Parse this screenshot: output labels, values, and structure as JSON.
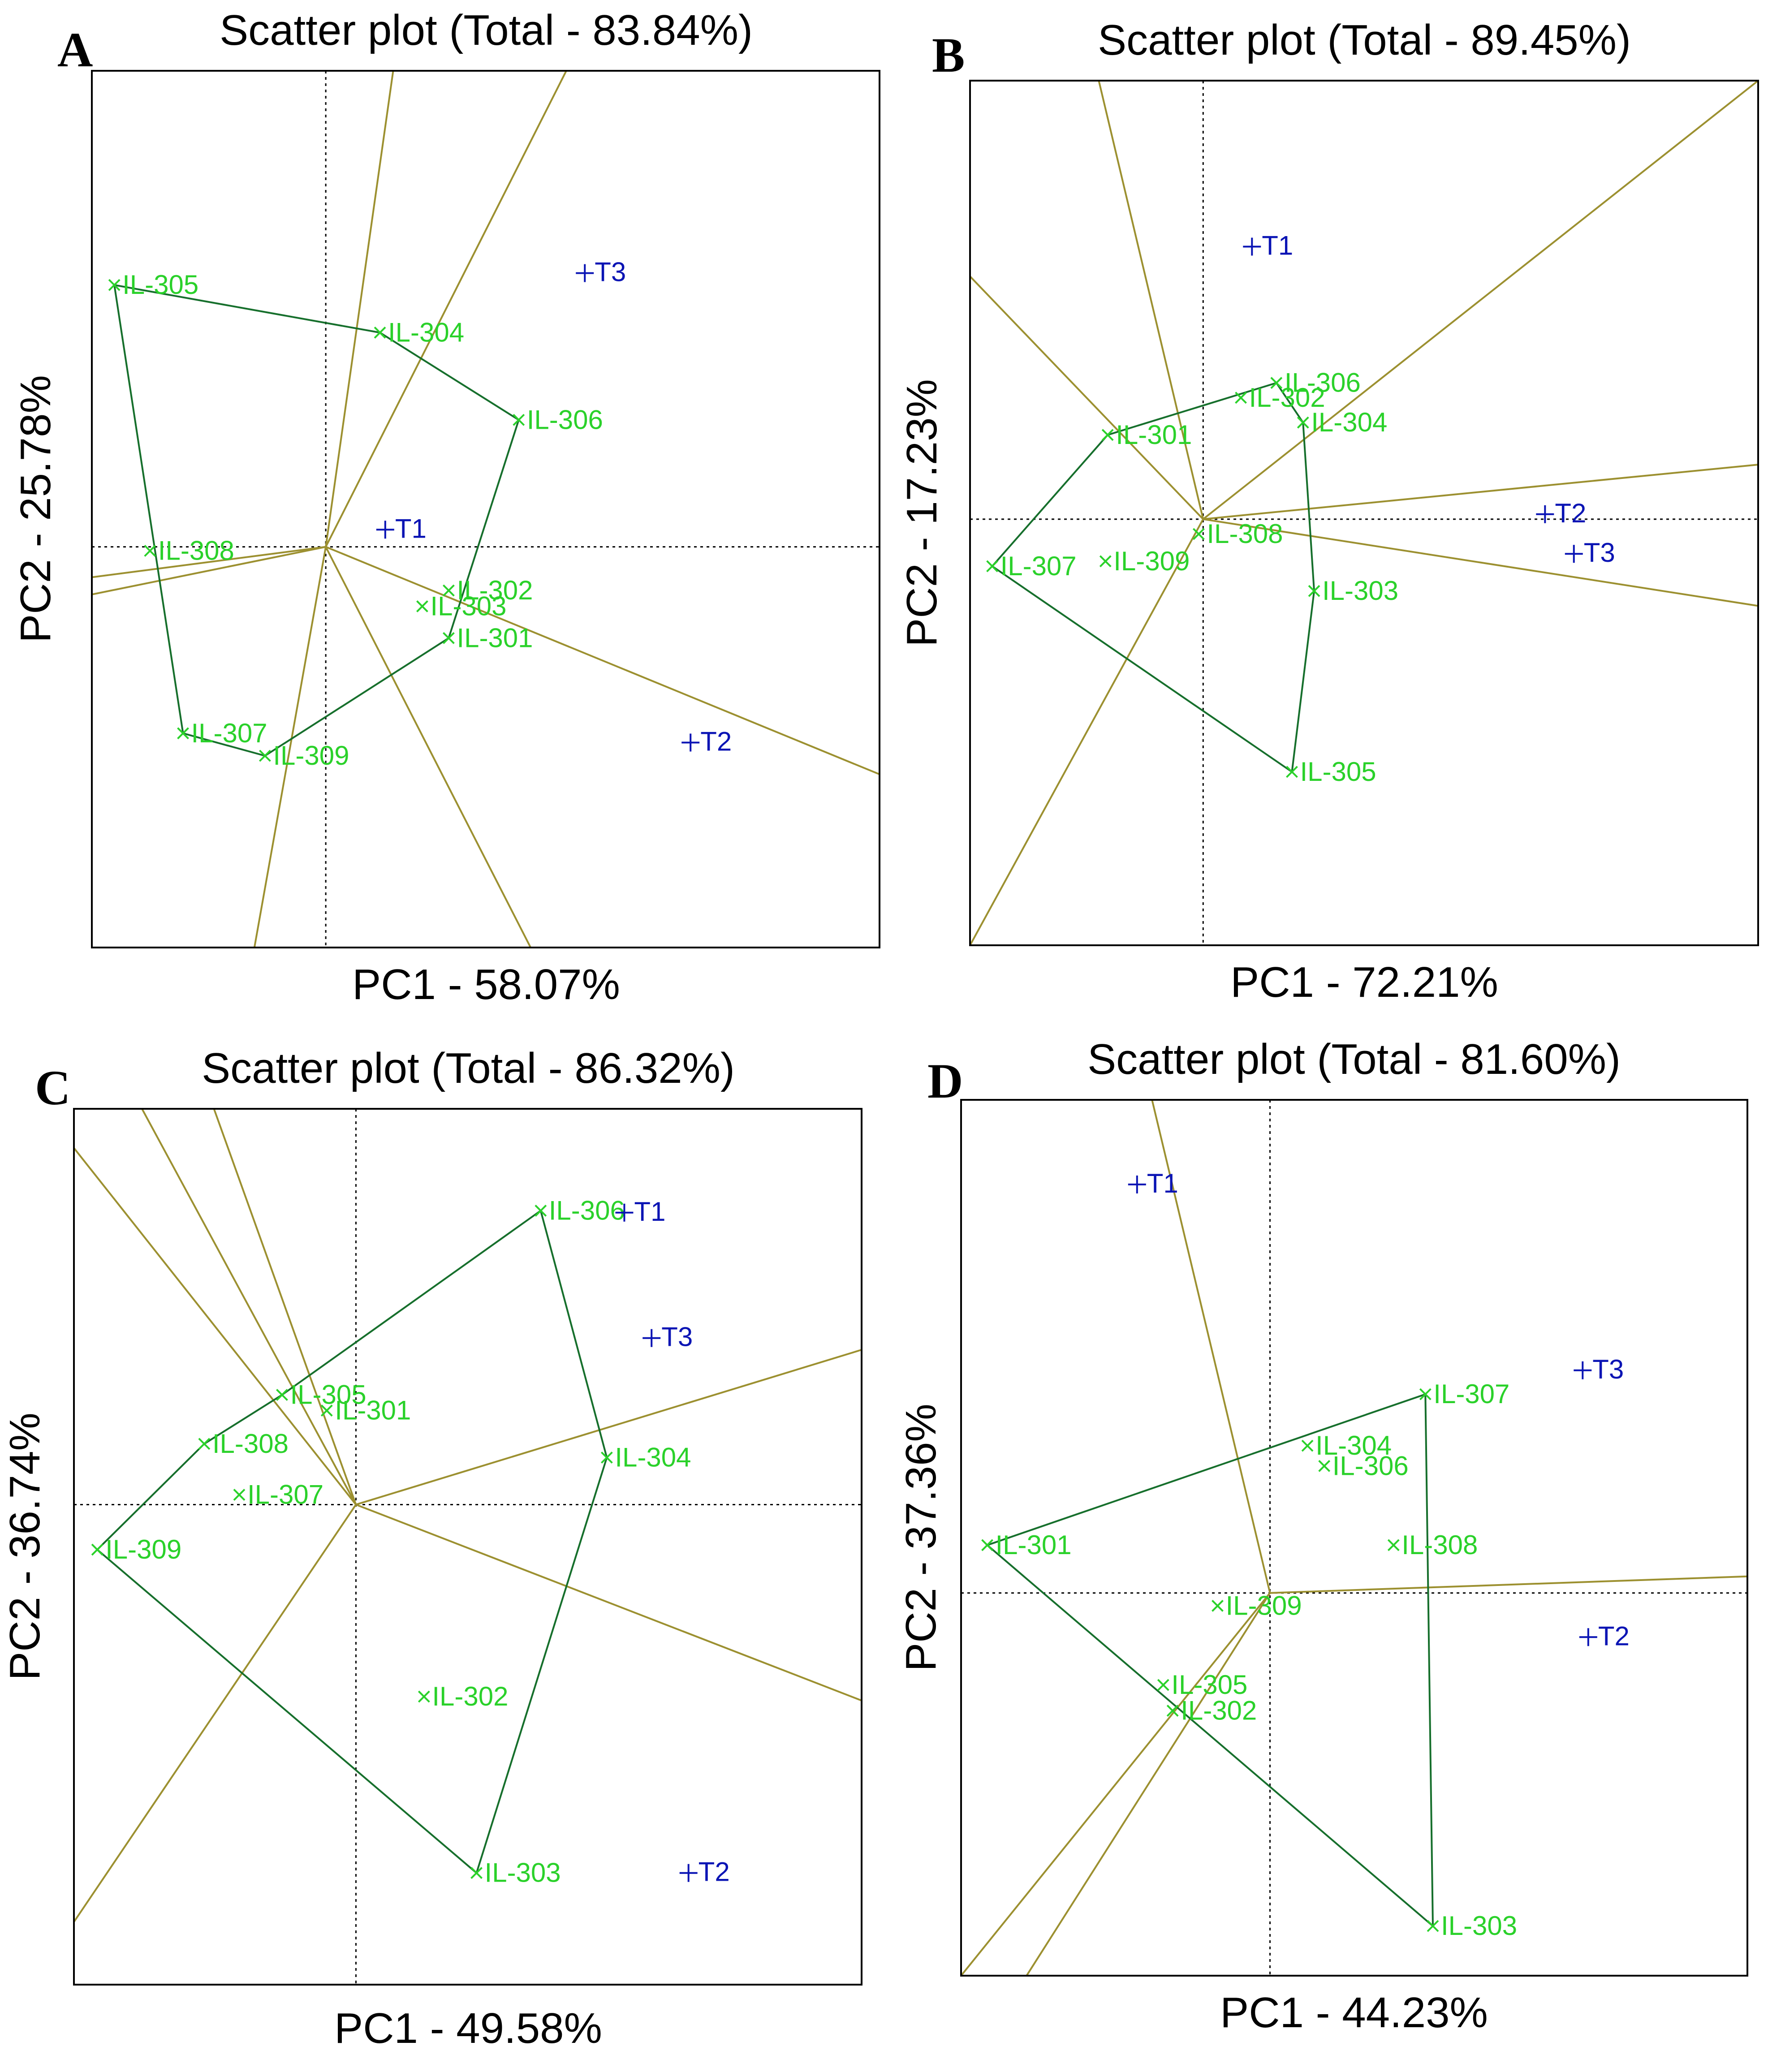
{
  "colors": {
    "genotype": "#2ad12a",
    "environment": "#0a14b4",
    "polygon": "#166f2c",
    "sector": "#9c9030",
    "frame": "#000000"
  },
  "chart_data": [
    {
      "type": "scatter",
      "panel_label": "A",
      "title": "Scatter plot (Total - 83.84%)",
      "xlabel": "PC1 - 58.07%",
      "ylabel": "PC2 - 25.78%",
      "xlim": [
        -1.77,
        4.19
      ],
      "ylim": [
        -3.03,
        3.6
      ],
      "origin": [
        0,
        0
      ],
      "genotypes": [
        {
          "name": "IL-305",
          "x": -1.6,
          "y": 1.98
        },
        {
          "name": "IL-304",
          "x": 0.41,
          "y": 1.62
        },
        {
          "name": "IL-306",
          "x": 1.46,
          "y": 0.96
        },
        {
          "name": "IL-308",
          "x": -1.33,
          "y": -0.03
        },
        {
          "name": "IL-302",
          "x": 0.93,
          "y": -0.33
        },
        {
          "name": "IL-303",
          "x": 0.73,
          "y": -0.45
        },
        {
          "name": "IL-301",
          "x": 0.93,
          "y": -0.69
        },
        {
          "name": "IL-307",
          "x": -1.08,
          "y": -1.41
        },
        {
          "name": "IL-309",
          "x": -0.46,
          "y": -1.58
        }
      ],
      "environments": [
        {
          "name": "T3",
          "x": 1.96,
          "y": 2.07
        },
        {
          "name": "T1",
          "x": 0.45,
          "y": 0.13
        },
        {
          "name": "T2",
          "x": 2.76,
          "y": -1.48
        }
      ],
      "polygon": [
        "IL-305",
        "IL-304",
        "IL-306",
        "IL-301",
        "IL-309",
        "IL-307"
      ],
      "sector_ends": [
        [
          -1.77,
          -0.23
        ],
        [
          -1.77,
          -0.36
        ],
        [
          0.51,
          3.6
        ],
        [
          1.82,
          3.6
        ],
        [
          -0.54,
          -3.03
        ],
        [
          1.55,
          -3.03
        ],
        [
          4.19,
          -1.72
        ]
      ]
    },
    {
      "type": "scatter",
      "panel_label": "B",
      "title": "Scatter plot (Total - 89.45%)",
      "xlabel": "PC1 - 72.21%",
      "ylabel": "PC2 - 17.23%",
      "xlim": [
        -1.05,
        2.5
      ],
      "ylim": [
        -1.72,
        1.77
      ],
      "origin": [
        0,
        0
      ],
      "genotypes": [
        {
          "name": "IL-306",
          "x": 0.33,
          "y": 0.55
        },
        {
          "name": "IL-302",
          "x": 0.17,
          "y": 0.49
        },
        {
          "name": "IL-304",
          "x": 0.45,
          "y": 0.39
        },
        {
          "name": "IL-301",
          "x": -0.43,
          "y": 0.34
        },
        {
          "name": "IL-307",
          "x": -0.95,
          "y": -0.19
        },
        {
          "name": "IL-309",
          "x": -0.44,
          "y": -0.17
        },
        {
          "name": "IL-308",
          "x": -0.02,
          "y": -0.06
        },
        {
          "name": "IL-303",
          "x": 0.5,
          "y": -0.29
        },
        {
          "name": "IL-305",
          "x": 0.4,
          "y": -1.02
        }
      ],
      "environments": [
        {
          "name": "T1",
          "x": 0.22,
          "y": 1.1
        },
        {
          "name": "T2",
          "x": 1.54,
          "y": 0.02
        },
        {
          "name": "T3",
          "x": 1.67,
          "y": -0.14
        }
      ],
      "polygon": [
        "IL-301",
        "IL-306",
        "IL-304",
        "IL-303",
        "IL-305",
        "IL-307"
      ],
      "sector_ends": [
        [
          -0.47,
          1.77
        ],
        [
          -1.05,
          0.98
        ],
        [
          2.5,
          1.77
        ],
        [
          2.5,
          0.22
        ],
        [
          2.5,
          -0.35
        ],
        [
          -1.05,
          -1.72
        ]
      ]
    },
    {
      "type": "scatter",
      "panel_label": "C",
      "title": "Scatter plot (Total - 86.32%)",
      "xlabel": "PC1 - 49.58%",
      "ylabel": "PC2 - 36.74%",
      "xlim": [
        -1.45,
        2.6
      ],
      "ylim": [
        -2.45,
        2.02
      ],
      "origin": [
        0,
        0
      ],
      "genotypes": [
        {
          "name": "IL-306",
          "x": 0.95,
          "y": 1.5
        },
        {
          "name": "IL-305",
          "x": -0.38,
          "y": 0.56
        },
        {
          "name": "IL-301",
          "x": -0.15,
          "y": 0.48
        },
        {
          "name": "IL-308",
          "x": -0.78,
          "y": 0.31
        },
        {
          "name": "IL-307",
          "x": -0.6,
          "y": 0.05
        },
        {
          "name": "IL-304",
          "x": 1.29,
          "y": 0.24
        },
        {
          "name": "IL-309",
          "x": -1.33,
          "y": -0.23
        },
        {
          "name": "IL-302",
          "x": 0.35,
          "y": -0.98
        },
        {
          "name": "IL-303",
          "x": 0.62,
          "y": -1.88
        }
      ],
      "environments": [
        {
          "name": "T1",
          "x": 1.38,
          "y": 1.49
        },
        {
          "name": "T3",
          "x": 1.52,
          "y": 0.85
        },
        {
          "name": "T2",
          "x": 1.71,
          "y": -1.88
        }
      ],
      "polygon": [
        "IL-306",
        "IL-304",
        "IL-303",
        "IL-309",
        "IL-308",
        "IL-305"
      ],
      "sector_ends": [
        [
          -1.45,
          1.82
        ],
        [
          -1.1,
          2.02
        ],
        [
          -0.73,
          2.02
        ],
        [
          -1.45,
          -2.13
        ],
        [
          2.6,
          0.79
        ],
        [
          2.6,
          -1.0
        ]
      ]
    },
    {
      "type": "scatter",
      "panel_label": "D",
      "title": "Scatter plot (Total - 81.60%)",
      "xlabel": "PC1 - 44.23%",
      "ylabel": "PC2 - 37.36%",
      "xlim": [
        -1.65,
        2.55
      ],
      "ylim": [
        -2.08,
        2.68
      ],
      "origin": [
        0,
        0
      ],
      "genotypes": [
        {
          "name": "IL-307",
          "x": 0.83,
          "y": 1.08
        },
        {
          "name": "IL-304",
          "x": 0.2,
          "y": 0.8
        },
        {
          "name": "IL-306",
          "x": 0.29,
          "y": 0.69
        },
        {
          "name": "IL-301",
          "x": -1.51,
          "y": 0.26
        },
        {
          "name": "IL-308",
          "x": 0.66,
          "y": 0.26
        },
        {
          "name": "IL-309",
          "x": -0.28,
          "y": -0.07
        },
        {
          "name": "IL-305",
          "x": -0.57,
          "y": -0.5
        },
        {
          "name": "IL-302",
          "x": -0.52,
          "y": -0.64
        },
        {
          "name": "IL-303",
          "x": 0.87,
          "y": -1.81
        }
      ],
      "environments": [
        {
          "name": "T1",
          "x": -0.71,
          "y": 2.22
        },
        {
          "name": "T3",
          "x": 1.67,
          "y": 1.21
        },
        {
          "name": "T2",
          "x": 1.7,
          "y": -0.24
        }
      ],
      "polygon": [
        "IL-307",
        "IL-303",
        "IL-301"
      ],
      "sector_ends": [
        [
          -0.63,
          2.68
        ],
        [
          2.55,
          0.09
        ],
        [
          -1.65,
          -2.08
        ],
        [
          -1.3,
          -2.08
        ]
      ]
    }
  ]
}
